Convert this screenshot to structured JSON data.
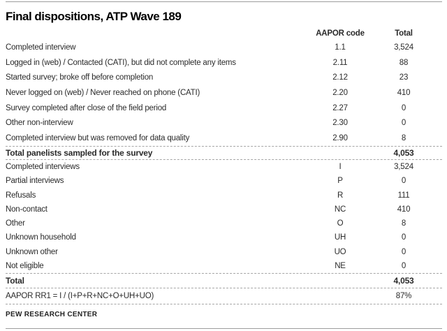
{
  "page": {
    "title": "Final dispositions, ATP Wave 189",
    "footer": "PEW RESEARCH CENTER"
  },
  "table": {
    "columns": {
      "code": "AAPOR code",
      "total": "Total"
    },
    "section1": {
      "rows": [
        {
          "label": "Completed interview",
          "code": "1.1",
          "total": "3,524"
        },
        {
          "label": "Logged in (web) / Contacted (CATI), but did not complete any items",
          "code": "2.11",
          "total": "88"
        },
        {
          "label": "Started survey; broke off before completion",
          "code": "2.12",
          "total": "23"
        },
        {
          "label": "Never logged on (web) / Never reached on phone (CATI)",
          "code": "2.20",
          "total": "410"
        },
        {
          "label": "Survey completed after close of the field period",
          "code": "2.27",
          "total": "0"
        },
        {
          "label": "Other non-interview",
          "code": "2.30",
          "total": "0"
        },
        {
          "label": "Completed interview but was removed for data quality",
          "code": "2.90",
          "total": "8"
        }
      ],
      "total_row": {
        "label": "Total panelists sampled for the survey",
        "code": "",
        "total": "4,053"
      }
    },
    "section2": {
      "rows": [
        {
          "label": "Completed interviews",
          "code": "I",
          "total": "3,524"
        },
        {
          "label": "Partial interviews",
          "code": "P",
          "total": "0"
        },
        {
          "label": "Refusals",
          "code": "R",
          "total": "111"
        },
        {
          "label": "Non-contact",
          "code": "NC",
          "total": "410"
        },
        {
          "label": "Other",
          "code": "O",
          "total": "8"
        },
        {
          "label": "Unknown household",
          "code": "UH",
          "total": "0"
        },
        {
          "label": "Unknown other",
          "code": "UO",
          "total": "0"
        },
        {
          "label": "Not eligible",
          "code": "NE",
          "total": "0"
        }
      ],
      "total_row": {
        "label": "Total",
        "code": "",
        "total": "4,053"
      },
      "rate_row": {
        "label": "AAPOR RR1 = I / (I+P+R+NC+O+UH+UO)",
        "code": "",
        "total": "87%"
      }
    }
  }
}
